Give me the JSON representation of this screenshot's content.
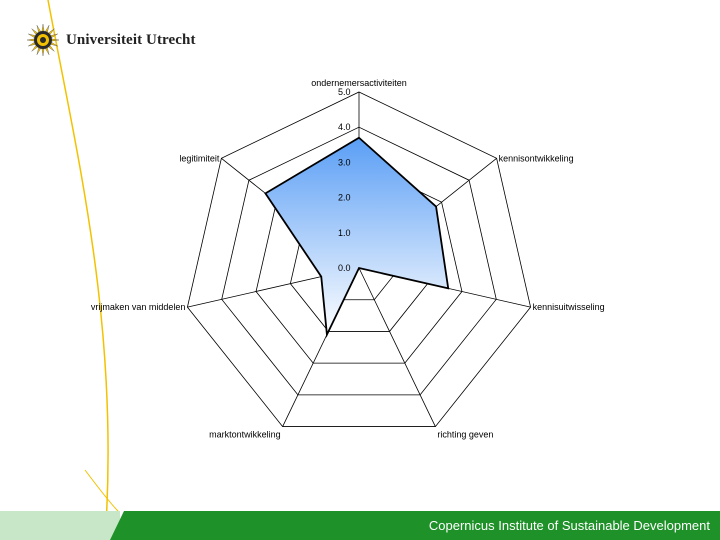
{
  "header": {
    "logo_text": "Universiteit Utrecht"
  },
  "footer": {
    "text": "Copernicus Institute of Sustainable Development"
  },
  "colors": {
    "footer_dark": "#1e9128",
    "footer_light": "#c8e6c8",
    "accent_line": "#f2c200",
    "fill_top": "#5a9ef5",
    "fill_bottom": "#ffffff"
  },
  "chart_data": {
    "type": "radar",
    "title": "",
    "categories": [
      "ondernemersactiviteiten",
      "kennisontwikkeling",
      "kennisuitwisseling",
      "richting geven",
      "marktontwikkeling",
      "vrijmaken van middelen",
      "legitimiteit"
    ],
    "tick_labels": [
      "0.0",
      "1.0",
      "2.0",
      "3.0",
      "4.0",
      "5.0"
    ],
    "ticks": [
      0,
      1,
      2,
      3,
      4,
      5
    ],
    "range": [
      0,
      5
    ],
    "series": [
      {
        "values": [
          3.7,
          2.8,
          2.6,
          0,
          2.1,
          1.1,
          3.4
        ]
      }
    ],
    "legend": "none",
    "grid": true
  }
}
